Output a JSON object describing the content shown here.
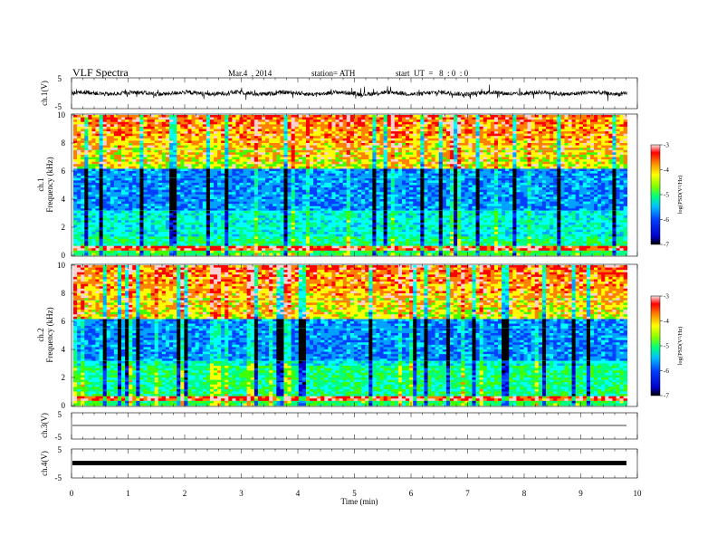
{
  "header": {
    "title": "VLF  Spectra",
    "date": "Mar.4  , 2014",
    "station": "station= ATH",
    "start_ut": "start  UT  =   8  : 0  : 0"
  },
  "chart_data": [
    {
      "type": "line",
      "ylabel": "ch.1(V)",
      "ylim": [
        -5,
        5
      ],
      "yticks": [
        "5",
        "-5"
      ],
      "description_baseline": 0.0,
      "x_range_min": [
        0,
        9.8
      ]
    },
    {
      "type": "heatmap",
      "ylabel": "ch.1\nFrequency  (kHz)",
      "ylim": [
        0,
        10
      ],
      "yticks": [
        0,
        2,
        4,
        6,
        8,
        10
      ],
      "colorbar": {
        "label": "log(PSD(V²/Hz)",
        "min": -7,
        "max": -3,
        "ticks": [
          "-3",
          "-4",
          "-5",
          "-6",
          "-7"
        ]
      }
    },
    {
      "type": "heatmap",
      "ylabel": "ch.2\nFrequency  (kHz)",
      "ylim": [
        0,
        10
      ],
      "yticks": [
        0,
        2,
        4,
        6,
        8,
        10
      ],
      "colorbar": {
        "label": "log(PSD(V²/Hz)",
        "min": -7,
        "max": -3,
        "ticks": [
          "-3",
          "-4",
          "-5",
          "-6",
          "-7"
        ]
      }
    },
    {
      "type": "line",
      "ylabel": "ch.3(V)",
      "ylim": [
        -5,
        5
      ],
      "yticks": [
        "5",
        "-5"
      ]
    },
    {
      "type": "line",
      "ylabel": "ch.4(V)",
      "ylim": [
        -5,
        5
      ],
      "yticks": [
        "5",
        "-5"
      ]
    }
  ],
  "xaxis": {
    "label": "Time  (min)",
    "range": [
      0,
      10
    ],
    "ticks": [
      "0",
      "1",
      "2",
      "3",
      "4",
      "5",
      "6",
      "7",
      "8",
      "9",
      "10"
    ]
  },
  "colors": {
    "colormap": [
      "#000000",
      "#0000c8",
      "#0040ff",
      "#00a0ff",
      "#00ffff",
      "#00ff80",
      "#40ff00",
      "#ffff00",
      "#ff8000",
      "#ff0000",
      "#ffd0d0"
    ]
  }
}
